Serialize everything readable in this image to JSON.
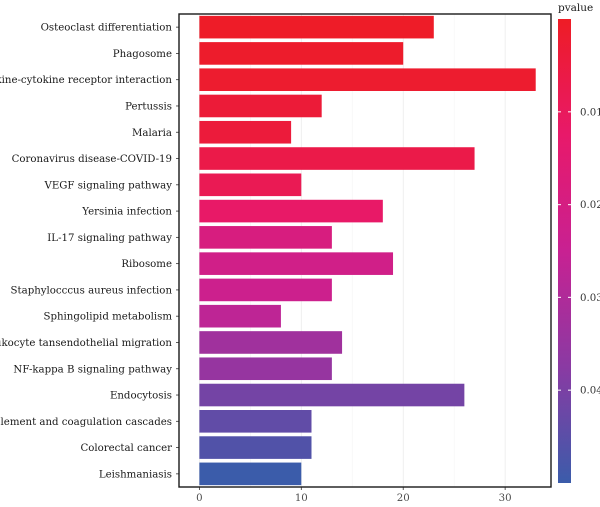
{
  "chart_data": {
    "type": "bar",
    "orientation": "horizontal",
    "categories": [
      "Osteoclast differentiation",
      "Phagosome",
      "Cytokine-cytokine receptor interaction",
      "Pertussis",
      "Malaria",
      "Coronavirus disease-COVID-19",
      "VEGF signaling pathway",
      "Yersinia infection",
      "IL-17 signaling pathway",
      "Ribosome",
      "Staphylocccus aureus infection",
      "Sphingolipid metabolism",
      "Leukocyte tansendothelial migration",
      "NF-kappa B signaling pathway",
      "Endocytosis",
      "Complement and coagulation cascades",
      "Colorectal cancer",
      "Leishmaniasis"
    ],
    "values": [
      23,
      20,
      33,
      12,
      9,
      27,
      10,
      18,
      13,
      19,
      13,
      8,
      14,
      13,
      26,
      11,
      11,
      10
    ],
    "pvalues": [
      0.0005,
      0.0012,
      0.0018,
      0.0035,
      0.004,
      0.0065,
      0.0085,
      0.012,
      0.019,
      0.022,
      0.0235,
      0.027,
      0.033,
      0.035,
      0.041,
      0.044,
      0.0465,
      0.05
    ],
    "xlim": [
      -2,
      34.5
    ],
    "xticks": [
      0,
      10,
      20,
      30
    ],
    "xlabel": "",
    "ylabel": "",
    "grid": true,
    "legend": {
      "title": "pvalue",
      "position": "right",
      "ticks": [
        0.01,
        0.02,
        0.03,
        0.04
      ],
      "range": [
        0,
        0.05
      ],
      "colors": [
        "#ee1c25",
        "#e8196a",
        "#c82192",
        "#8a3aa3",
        "#3b5caa"
      ]
    }
  }
}
